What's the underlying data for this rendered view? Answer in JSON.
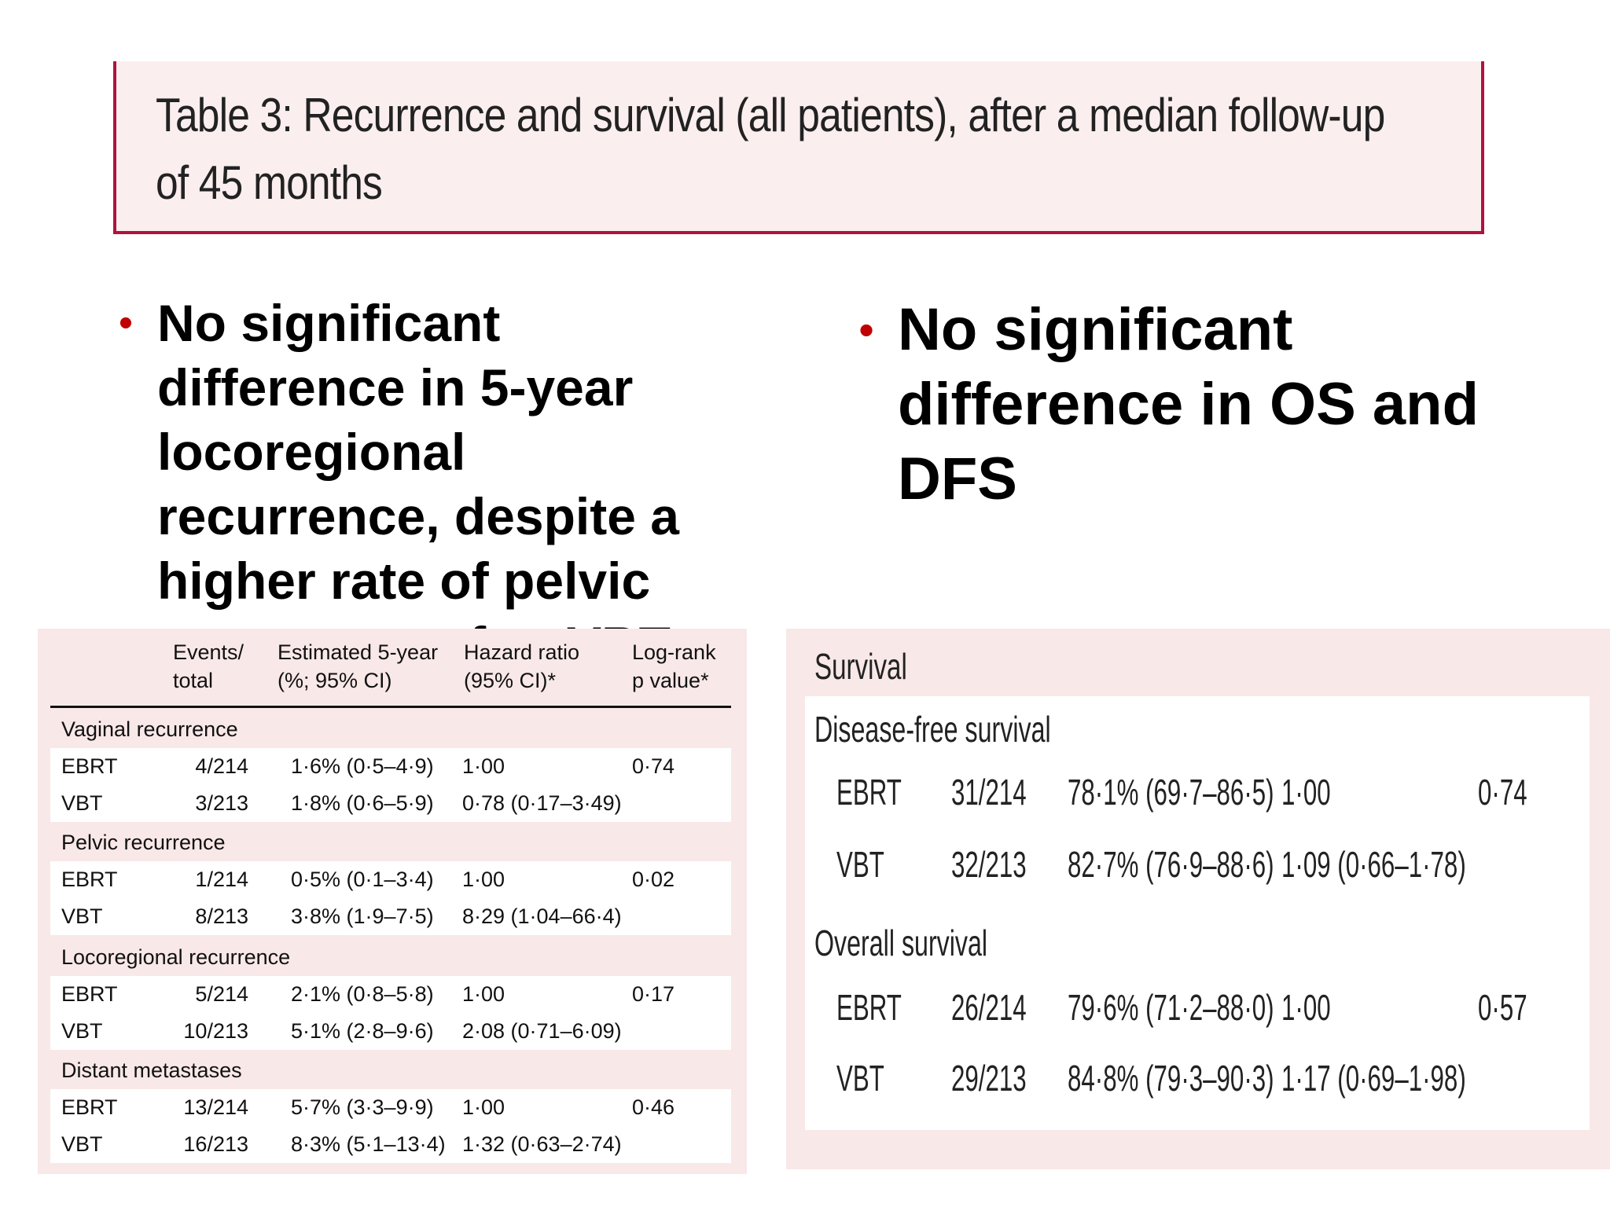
{
  "title": {
    "line1": "Table 3: Recurrence and survival (all patients), after a median follow-up",
    "line2": "of 45 months"
  },
  "bullets": {
    "left": [
      "No significant",
      "difference in 5-year",
      "locoregional",
      "recurrence, despite a",
      "higher rate of pelvic",
      "recurrence after VBT"
    ],
    "right": [
      "No significant",
      "difference in OS and",
      "DFS"
    ]
  },
  "recurrence_table": {
    "headers": {
      "events": [
        "Events/",
        "total"
      ],
      "estimate": [
        "Estimated 5-year",
        "(%; 95% CI)"
      ],
      "hazard": [
        "Hazard ratio",
        "(95% CI)*"
      ],
      "logrank": [
        "Log-rank",
        "p value*"
      ]
    },
    "groups": [
      {
        "title": "Vaginal recurrence",
        "rows": [
          {
            "arm": "EBRT",
            "events": "4/214",
            "estimate": "1·6% (0·5–4·9)",
            "hazard": "1·00",
            "p": "0·74"
          },
          {
            "arm": "VBT",
            "events": "3/213",
            "estimate": "1·8% (0·6–5·9)",
            "hazard": "0·78 (0·17–3·49)",
            "p": ""
          }
        ]
      },
      {
        "title": "Pelvic recurrence",
        "rows": [
          {
            "arm": "EBRT",
            "events": "1/214",
            "estimate": "0·5% (0·1–3·4)",
            "hazard": "1·00",
            "p": "0·02"
          },
          {
            "arm": "VBT",
            "events": "8/213",
            "estimate": "3·8% (1·9–7·5)",
            "hazard": "8·29 (1·04–66·4)",
            "p": ""
          }
        ]
      },
      {
        "title": "Locoregional recurrence",
        "rows": [
          {
            "arm": "EBRT",
            "events": "5/214",
            "estimate": "2·1% (0·8–5·8)",
            "hazard": "1·00",
            "p": "0·17"
          },
          {
            "arm": "VBT",
            "events": "10/213",
            "estimate": "5·1% (2·8–9·6)",
            "hazard": "2·08 (0·71–6·09)",
            "p": ""
          }
        ]
      },
      {
        "title": "Distant metastases",
        "rows": [
          {
            "arm": "EBRT",
            "events": "13/214",
            "estimate": "5·7% (3·3–9·9)",
            "hazard": "1·00",
            "p": "0·46"
          },
          {
            "arm": "VBT",
            "events": "16/213",
            "estimate": "8·3% (5·1–13·4)",
            "hazard": "1·32 (0·63–2·74)",
            "p": ""
          }
        ]
      }
    ]
  },
  "survival_table": {
    "title": "Survival",
    "groups": [
      {
        "title": "Disease-free survival",
        "rows": [
          {
            "arm": "EBRT",
            "events": "31/214",
            "estimate": "78·1% (69·7–86·5)",
            "hazard": "1·00",
            "p": "0·74"
          },
          {
            "arm": "VBT",
            "events": "32/213",
            "estimate": "82·7% (76·9–88·6)",
            "hazard": "1·09 (0·66–1·78)",
            "p": ""
          }
        ]
      },
      {
        "title": "Overall survival",
        "rows": [
          {
            "arm": "EBRT",
            "events": "26/214",
            "estimate": "79·6% (71·2–88·0)",
            "hazard": "1·00",
            "p": "0·57"
          },
          {
            "arm": "VBT",
            "events": "29/213",
            "estimate": "84·8% (79·3–90·3)",
            "hazard": "1·17 (0·69–1·98)",
            "p": ""
          }
        ]
      }
    ]
  },
  "colors": {
    "accent": "#b0123f",
    "bullet": "#c00000",
    "table_bg": "#f9e8e8"
  }
}
